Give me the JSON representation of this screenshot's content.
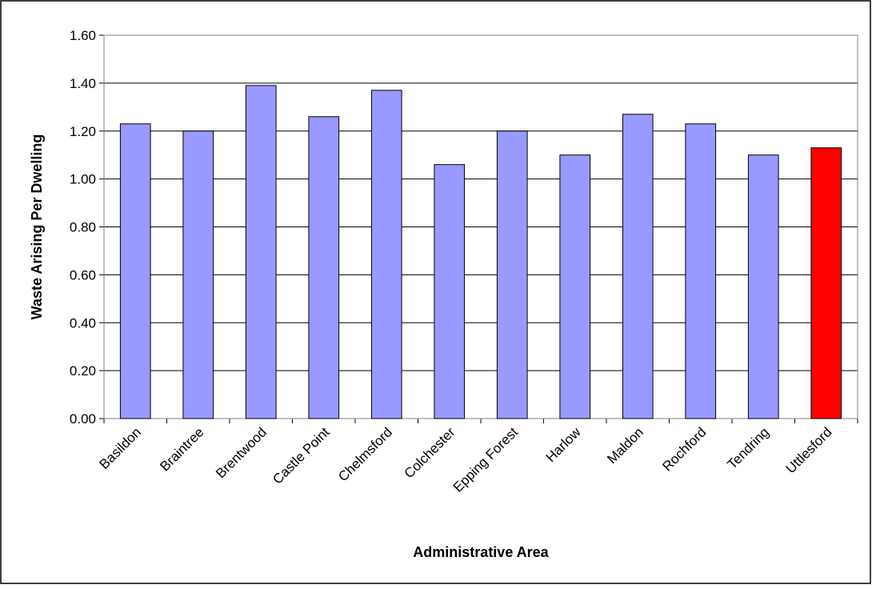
{
  "chart_data": {
    "type": "bar",
    "title": "",
    "xlabel": "Administrative Area",
    "ylabel": "Waste Arising Per Dwelling",
    "ylim": [
      0,
      1.6
    ],
    "yticks": [
      "0.00",
      "0.20",
      "0.40",
      "0.60",
      "0.80",
      "1.00",
      "1.20",
      "1.40",
      "1.60"
    ],
    "grid": true,
    "legend": "none",
    "categories": [
      "Basildon",
      "Braintree",
      "Brentwood",
      "Castle Point",
      "Chelmsford",
      "Colchester",
      "Epping Forest",
      "Harlow",
      "Maldon",
      "Rochford",
      "Tendring",
      "Uttlesford"
    ],
    "values": [
      1.23,
      1.2,
      1.39,
      1.26,
      1.37,
      1.06,
      1.2,
      1.1,
      1.27,
      1.23,
      1.1,
      1.13
    ],
    "colors": {
      "default": "#9999FF",
      "highlight": "#FF0000",
      "highlight_category": "Uttlesford"
    }
  }
}
